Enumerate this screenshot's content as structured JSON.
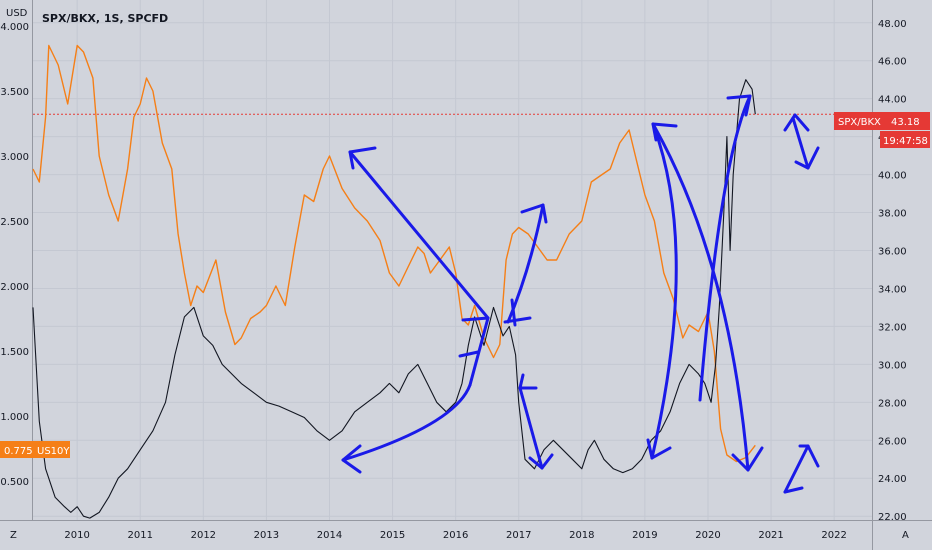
{
  "header": {
    "symbol_title": "SPX/BKX, 1S, SPCFD",
    "left_unit": "USD",
    "right_corner": "A",
    "left_corner": "Z"
  },
  "colors": {
    "background": "#d1d4dc",
    "ratio_series": "#131722",
    "yield_series": "#f57f17",
    "annotation": "#1a1ae8",
    "price_line": "#e53935",
    "badge_red": "#e53935",
    "badge_orange": "#f57f17",
    "grid": "#c4c8d2",
    "axis_text": "#131722"
  },
  "badges": {
    "ratio_label": "SPX/BKX",
    "ratio_value": "43.18",
    "countdown": "19:47:58",
    "yield_value": "0.775",
    "yield_label": "US10Y"
  },
  "chart_data": {
    "type": "line",
    "title": "SPX/BKX, 1S, SPCFD",
    "x_tick_labels": [
      "2010",
      "2011",
      "2012",
      "2013",
      "2014",
      "2015",
      "2016",
      "2017",
      "2018",
      "2019",
      "2020",
      "2021",
      "2022"
    ],
    "xlim": [
      2009.3,
      2022.6
    ],
    "left_axis": {
      "unit": "USD",
      "tick_labels": [
        "4.000",
        "3.500",
        "3.000",
        "2.500",
        "2.000",
        "1.500",
        "1.000",
        "0.500"
      ],
      "ylim": [
        0.2,
        4.2
      ]
    },
    "right_axis": {
      "tick_labels": [
        "48.00",
        "46.00",
        "44.00",
        "42.00",
        "40.00",
        "38.00",
        "36.00",
        "34.00",
        "32.00",
        "30.00",
        "28.00",
        "26.00",
        "24.00",
        "22.00"
      ],
      "ylim": [
        21.8,
        49.2
      ]
    },
    "grid": true,
    "price_line_value": 43.18,
    "series": [
      {
        "name": "US10Y",
        "axis": "left",
        "x": [
          2009.3,
          2009.4,
          2009.5,
          2009.55,
          2009.7,
          2009.85,
          2010.0,
          2010.1,
          2010.25,
          2010.35,
          2010.5,
          2010.65,
          2010.8,
          2010.9,
          2011.0,
          2011.1,
          2011.2,
          2011.35,
          2011.5,
          2011.6,
          2011.7,
          2011.8,
          2011.9,
          2012.0,
          2012.2,
          2012.35,
          2012.5,
          2012.6,
          2012.75,
          2012.9,
          2013.0,
          2013.15,
          2013.3,
          2013.45,
          2013.6,
          2013.75,
          2013.9,
          2014.0,
          2014.2,
          2014.4,
          2014.6,
          2014.8,
          2014.95,
          2015.1,
          2015.25,
          2015.4,
          2015.5,
          2015.6,
          2015.75,
          2015.9,
          2016.0,
          2016.1,
          2016.2,
          2016.3,
          2016.45,
          2016.6,
          2016.7,
          2016.8,
          2016.9,
          2017.0,
          2017.15,
          2017.3,
          2017.45,
          2017.6,
          2017.8,
          2018.0,
          2018.15,
          2018.3,
          2018.45,
          2018.6,
          2018.75,
          2018.85,
          2019.0,
          2019.15,
          2019.3,
          2019.45,
          2019.6,
          2019.7,
          2019.85,
          2020.0,
          2020.1,
          2020.2,
          2020.3,
          2020.45,
          2020.6,
          2020.75
        ],
        "values": [
          2.9,
          2.8,
          3.3,
          3.85,
          3.7,
          3.4,
          3.85,
          3.8,
          3.6,
          3.0,
          2.7,
          2.5,
          2.9,
          3.3,
          3.4,
          3.6,
          3.5,
          3.1,
          2.9,
          2.4,
          2.1,
          1.85,
          2.0,
          1.95,
          2.2,
          1.8,
          1.55,
          1.6,
          1.75,
          1.8,
          1.85,
          2.0,
          1.85,
          2.3,
          2.7,
          2.65,
          2.9,
          3.0,
          2.75,
          2.6,
          2.5,
          2.35,
          2.1,
          2.0,
          2.15,
          2.3,
          2.25,
          2.1,
          2.2,
          2.3,
          2.1,
          1.75,
          1.7,
          1.85,
          1.6,
          1.45,
          1.55,
          2.2,
          2.4,
          2.45,
          2.4,
          2.3,
          2.2,
          2.2,
          2.4,
          2.5,
          2.8,
          2.85,
          2.9,
          3.1,
          3.2,
          3.0,
          2.7,
          2.5,
          2.1,
          1.9,
          1.6,
          1.7,
          1.65,
          1.8,
          1.5,
          0.9,
          0.7,
          0.65,
          0.68,
          0.775
        ]
      },
      {
        "name": "SPX/BKX",
        "axis": "right",
        "x": [
          2009.3,
          2009.4,
          2009.5,
          2009.65,
          2009.8,
          2009.9,
          2010.0,
          2010.1,
          2010.2,
          2010.35,
          2010.5,
          2010.65,
          2010.8,
          2011.0,
          2011.2,
          2011.4,
          2011.55,
          2011.7,
          2011.85,
          2012.0,
          2012.15,
          2012.3,
          2012.45,
          2012.6,
          2012.8,
          2013.0,
          2013.2,
          2013.4,
          2013.6,
          2013.8,
          2014.0,
          2014.2,
          2014.4,
          2014.6,
          2014.8,
          2014.95,
          2015.1,
          2015.25,
          2015.4,
          2015.55,
          2015.7,
          2015.85,
          2016.0,
          2016.1,
          2016.2,
          2016.3,
          2016.45,
          2016.6,
          2016.75,
          2016.85,
          2016.95,
          2017.0,
          2017.1,
          2017.25,
          2017.4,
          2017.55,
          2017.7,
          2017.85,
          2018.0,
          2018.1,
          2018.2,
          2018.35,
          2018.5,
          2018.65,
          2018.8,
          2018.95,
          2019.1,
          2019.25,
          2019.4,
          2019.55,
          2019.7,
          2019.85,
          2019.95,
          2020.05,
          2020.12,
          2020.18,
          2020.25,
          2020.3,
          2020.35,
          2020.4,
          2020.5,
          2020.6,
          2020.7,
          2020.75
        ],
        "values": [
          33.0,
          27.0,
          24.5,
          23.0,
          22.5,
          22.2,
          22.5,
          22.0,
          21.9,
          22.2,
          23.0,
          24.0,
          24.5,
          25.5,
          26.5,
          28.0,
          30.5,
          32.5,
          33.0,
          31.5,
          31.0,
          30.0,
          29.5,
          29.0,
          28.5,
          28.0,
          27.8,
          27.5,
          27.2,
          26.5,
          26.0,
          26.5,
          27.5,
          28.0,
          28.5,
          29.0,
          28.5,
          29.5,
          30.0,
          29.0,
          28.0,
          27.5,
          28.0,
          29.0,
          31.0,
          32.5,
          31.0,
          33.0,
          31.5,
          32.0,
          30.5,
          28.0,
          25.0,
          24.5,
          25.5,
          26.0,
          25.5,
          25.0,
          24.5,
          25.5,
          26.0,
          25.0,
          24.5,
          24.3,
          24.5,
          25.0,
          26.0,
          26.5,
          27.5,
          29.0,
          30.0,
          29.5,
          29.0,
          28.0,
          30.0,
          33.0,
          38.0,
          42.0,
          36.0,
          40.0,
          44.0,
          45.0,
          44.5,
          43.18
        ]
      }
    ]
  }
}
